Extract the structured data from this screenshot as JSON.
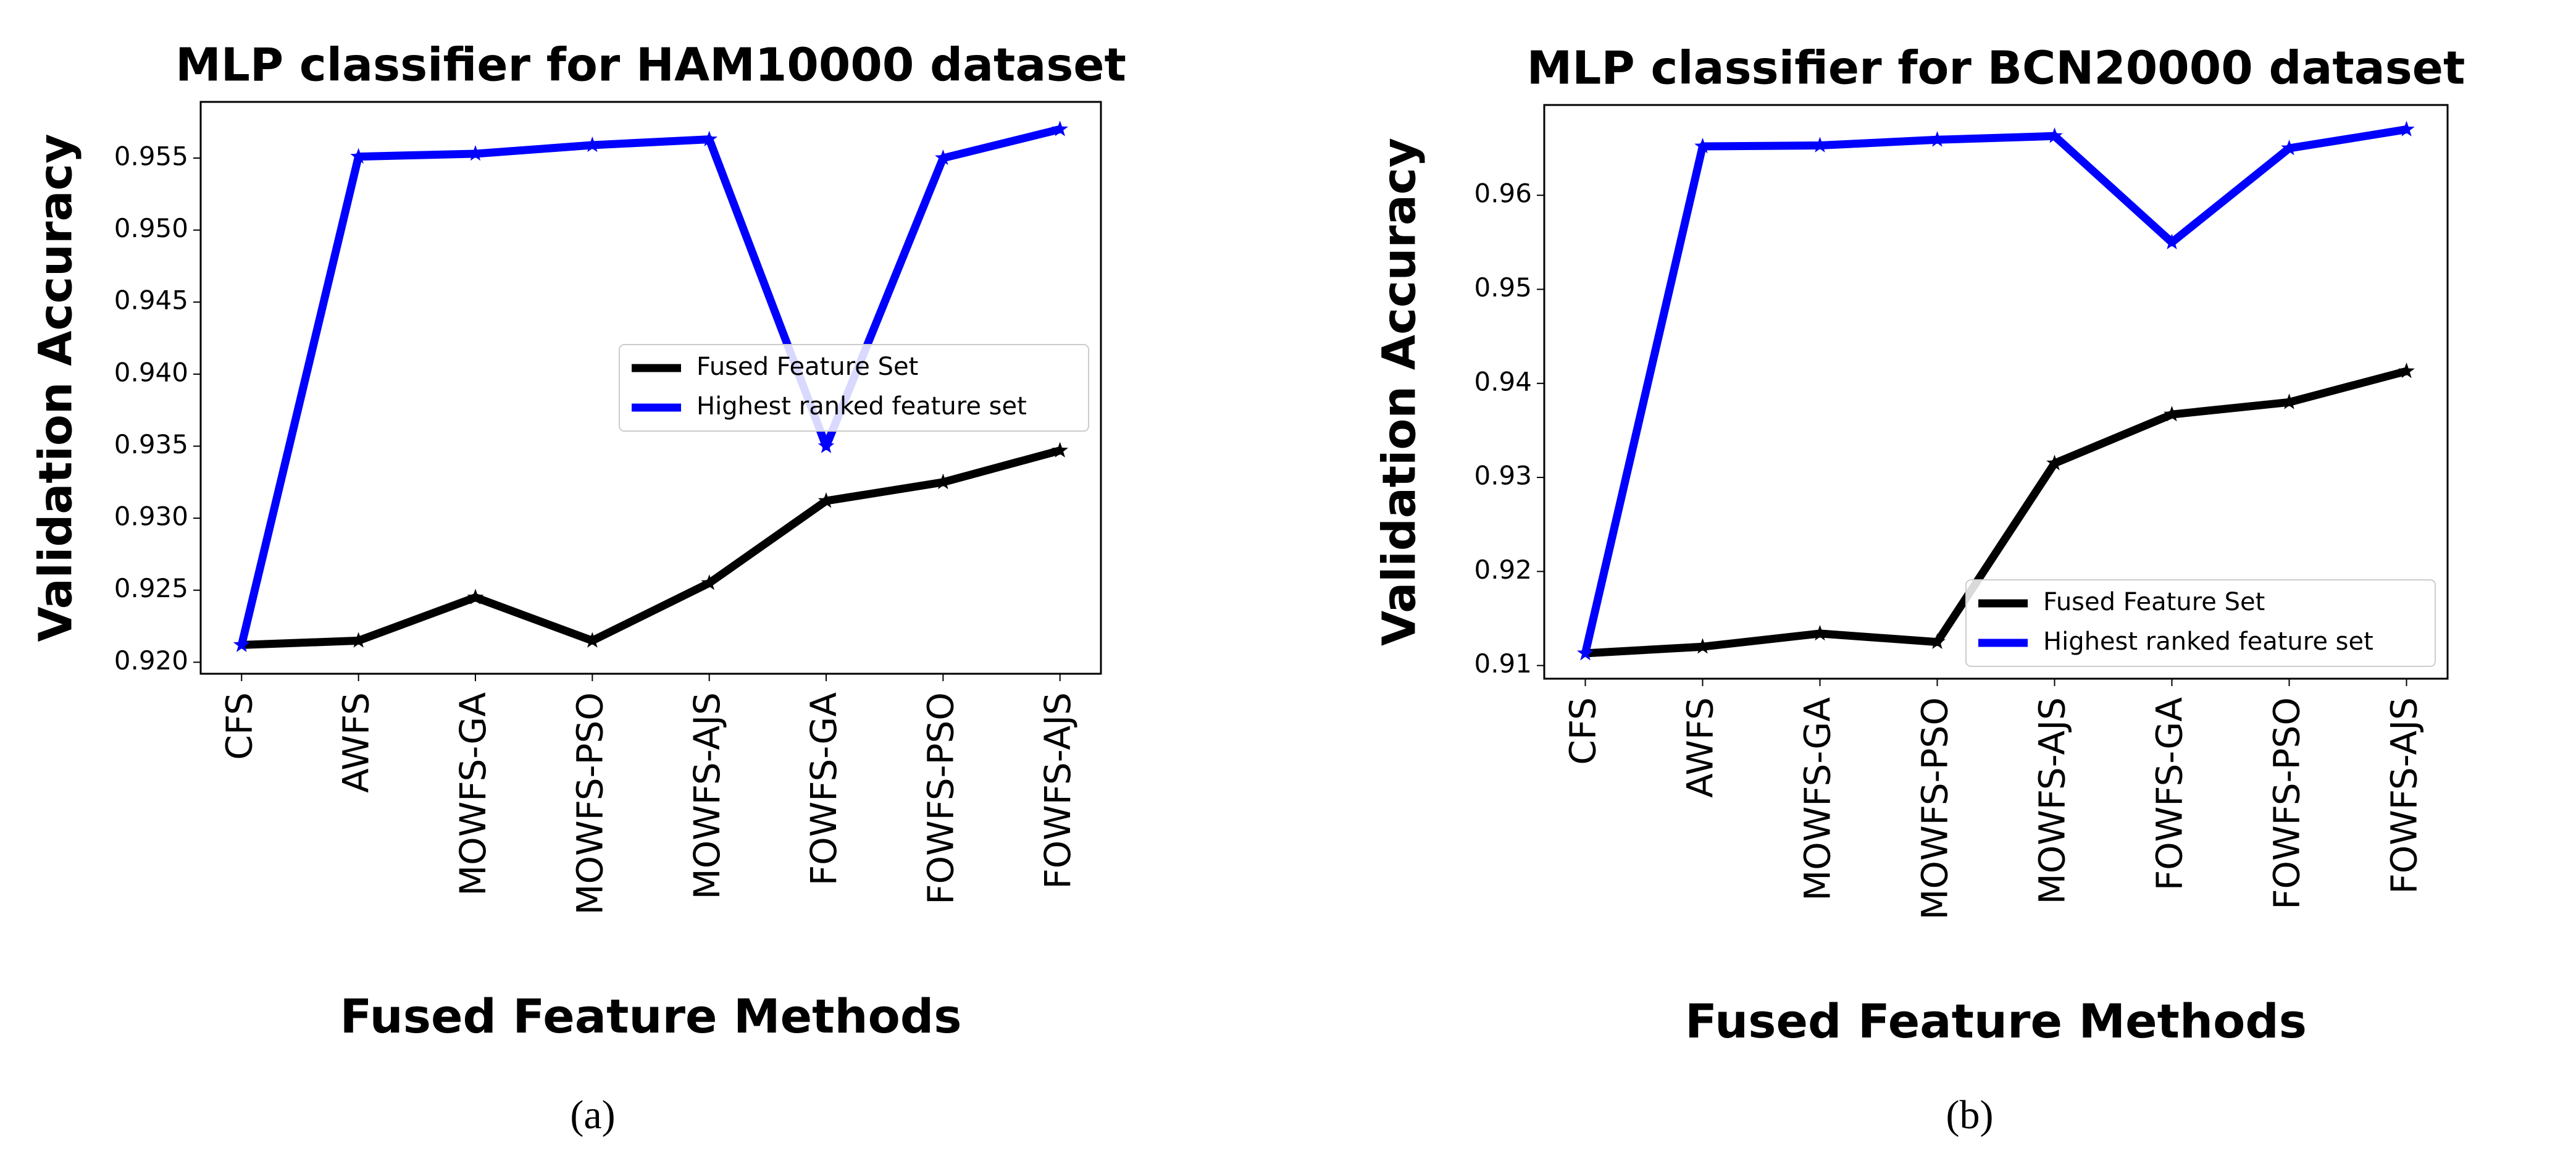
{
  "chart_data": [
    {
      "type": "line",
      "title": "MLP classifier for HAM10000 dataset",
      "xlabel": "Fused Feature Methods",
      "ylabel": "Validation Accuracy",
      "caption": "(a)",
      "categories": [
        "CFS",
        "AWFS",
        "MOWFS-GA",
        "MOWFS-PSO",
        "MOWFS-AJS",
        "FOWFS-GA",
        "FOWFS-PSO",
        "FOWFS-AJS"
      ],
      "series": [
        {
          "name": "Fused Feature Set",
          "color": "#000000",
          "values": [
            0.9212,
            0.9215,
            0.9245,
            0.9215,
            0.9255,
            0.9312,
            0.9325,
            0.9347
          ]
        },
        {
          "name": "Highest ranked feature set",
          "color": "#0000ff",
          "values": [
            0.9212,
            0.9551,
            0.9553,
            0.9559,
            0.9563,
            0.935,
            0.955,
            0.957
          ]
        }
      ],
      "ylim": [
        0.9192,
        0.9589
      ],
      "yticks": [
        {
          "value": 0.92,
          "label": "0.920"
        },
        0.925,
        {
          "value": 0.93,
          "label": "0.930"
        },
        0.935,
        {
          "value": 0.94,
          "label": "0.940"
        },
        0.945,
        {
          "value": 0.95,
          "label": "0.950"
        },
        0.955
      ],
      "legend": "center right"
    },
    {
      "type": "line",
      "title": "MLP classifier for BCN20000 dataset",
      "xlabel": "Fused Feature Methods",
      "ylabel": "Validation Accuracy",
      "caption": "(b)",
      "categories": [
        "CFS",
        "AWFS",
        "MOWFS-GA",
        "MOWFS-PSO",
        "MOWFS-AJS",
        "FOWFS-GA",
        "FOWFS-PSO",
        "FOWFS-AJS"
      ],
      "series": [
        {
          "name": "Fused Feature Set",
          "color": "#000000",
          "values": [
            0.9113,
            0.912,
            0.9134,
            0.9125,
            0.9315,
            0.9367,
            0.938,
            0.9413
          ]
        },
        {
          "name": "Highest ranked feature set",
          "color": "#0000ff",
          "values": [
            0.9113,
            0.9652,
            0.9653,
            0.9659,
            0.9663,
            0.955,
            0.965,
            0.967
          ]
        }
      ],
      "ylim": [
        0.9086,
        0.9696
      ],
      "yticks": [
        0.91,
        0.92,
        0.93,
        0.94,
        0.95,
        0.96
      ],
      "legend": "lower right"
    }
  ]
}
